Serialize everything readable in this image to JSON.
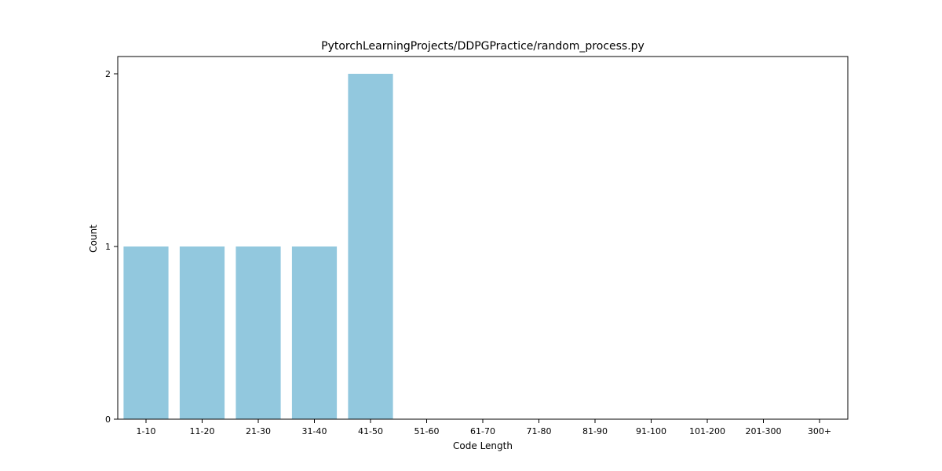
{
  "chart_data": {
    "type": "bar",
    "title": "PytorchLearningProjects/DDPGPractice/random_process.py",
    "xlabel": "Code Length",
    "ylabel": "Count",
    "categories": [
      "1-10",
      "11-20",
      "21-30",
      "31-40",
      "41-50",
      "51-60",
      "61-70",
      "71-80",
      "81-90",
      "91-100",
      "101-200",
      "201-300",
      "300+"
    ],
    "values": [
      1,
      1,
      1,
      1,
      2,
      0,
      0,
      0,
      0,
      0,
      0,
      0,
      0
    ],
    "yticks": [
      "0",
      "1",
      "2"
    ],
    "ylim": [
      0,
      2.1
    ],
    "bar_color": "#92c8de",
    "grid": false,
    "legend": false
  }
}
